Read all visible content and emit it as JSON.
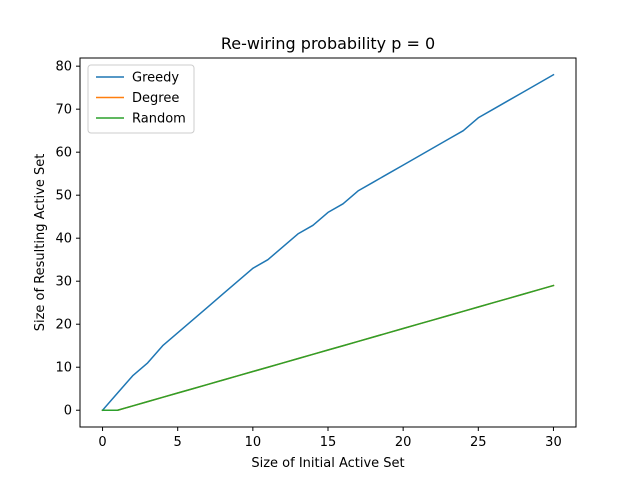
{
  "chart_data": {
    "type": "line",
    "title": "Re-wiring probability p = 0",
    "xlabel": "Size of Initial Active Set",
    "ylabel": "Size of Resulting Active Set",
    "xlim": [
      -1.5,
      31.5
    ],
    "ylim": [
      -3.9,
      81.9
    ],
    "xticks": [
      0,
      5,
      10,
      15,
      20,
      25,
      30
    ],
    "yticks": [
      0,
      10,
      20,
      30,
      40,
      50,
      60,
      70,
      80
    ],
    "grid": false,
    "legend_position": "upper-left",
    "series": [
      {
        "name": "Greedy",
        "color": "#1f77b4",
        "x": [
          0,
          1,
          2,
          3,
          4,
          5,
          6,
          7,
          8,
          9,
          10,
          11,
          12,
          13,
          14,
          15,
          16,
          17,
          18,
          19,
          20,
          21,
          22,
          23,
          24,
          25,
          26,
          27,
          28,
          29,
          30
        ],
        "y": [
          0,
          4,
          8,
          11,
          15,
          18,
          21,
          24,
          27,
          30,
          33,
          35,
          38,
          41,
          43,
          46,
          48,
          51,
          53,
          55,
          57,
          59,
          61,
          63,
          65,
          68,
          70,
          72,
          74,
          76,
          78
        ]
      },
      {
        "name": "Degree",
        "color": "#ff7f0e",
        "x": [
          0,
          1,
          2,
          3,
          4,
          5,
          6,
          7,
          8,
          9,
          10,
          11,
          12,
          13,
          14,
          15,
          16,
          17,
          18,
          19,
          20,
          21,
          22,
          23,
          24,
          25,
          26,
          27,
          28,
          29,
          30
        ],
        "y": [
          0,
          0,
          1,
          2,
          3,
          4,
          5,
          6,
          7,
          8,
          9,
          10,
          11,
          12,
          13,
          14,
          15,
          16,
          17,
          18,
          19,
          20,
          21,
          22,
          23,
          24,
          25,
          26,
          27,
          28,
          29
        ]
      },
      {
        "name": "Random",
        "color": "#2ca02c",
        "x": [
          0,
          1,
          2,
          3,
          4,
          5,
          6,
          7,
          8,
          9,
          10,
          11,
          12,
          13,
          14,
          15,
          16,
          17,
          18,
          19,
          20,
          21,
          22,
          23,
          24,
          25,
          26,
          27,
          28,
          29,
          30
        ],
        "y": [
          0,
          0,
          1,
          2,
          3,
          4,
          5,
          6,
          7,
          8,
          9,
          10,
          11,
          12,
          13,
          14,
          15,
          16,
          17,
          18,
          19,
          20,
          21,
          22,
          23,
          24,
          25,
          26,
          27,
          28,
          29
        ]
      }
    ]
  }
}
